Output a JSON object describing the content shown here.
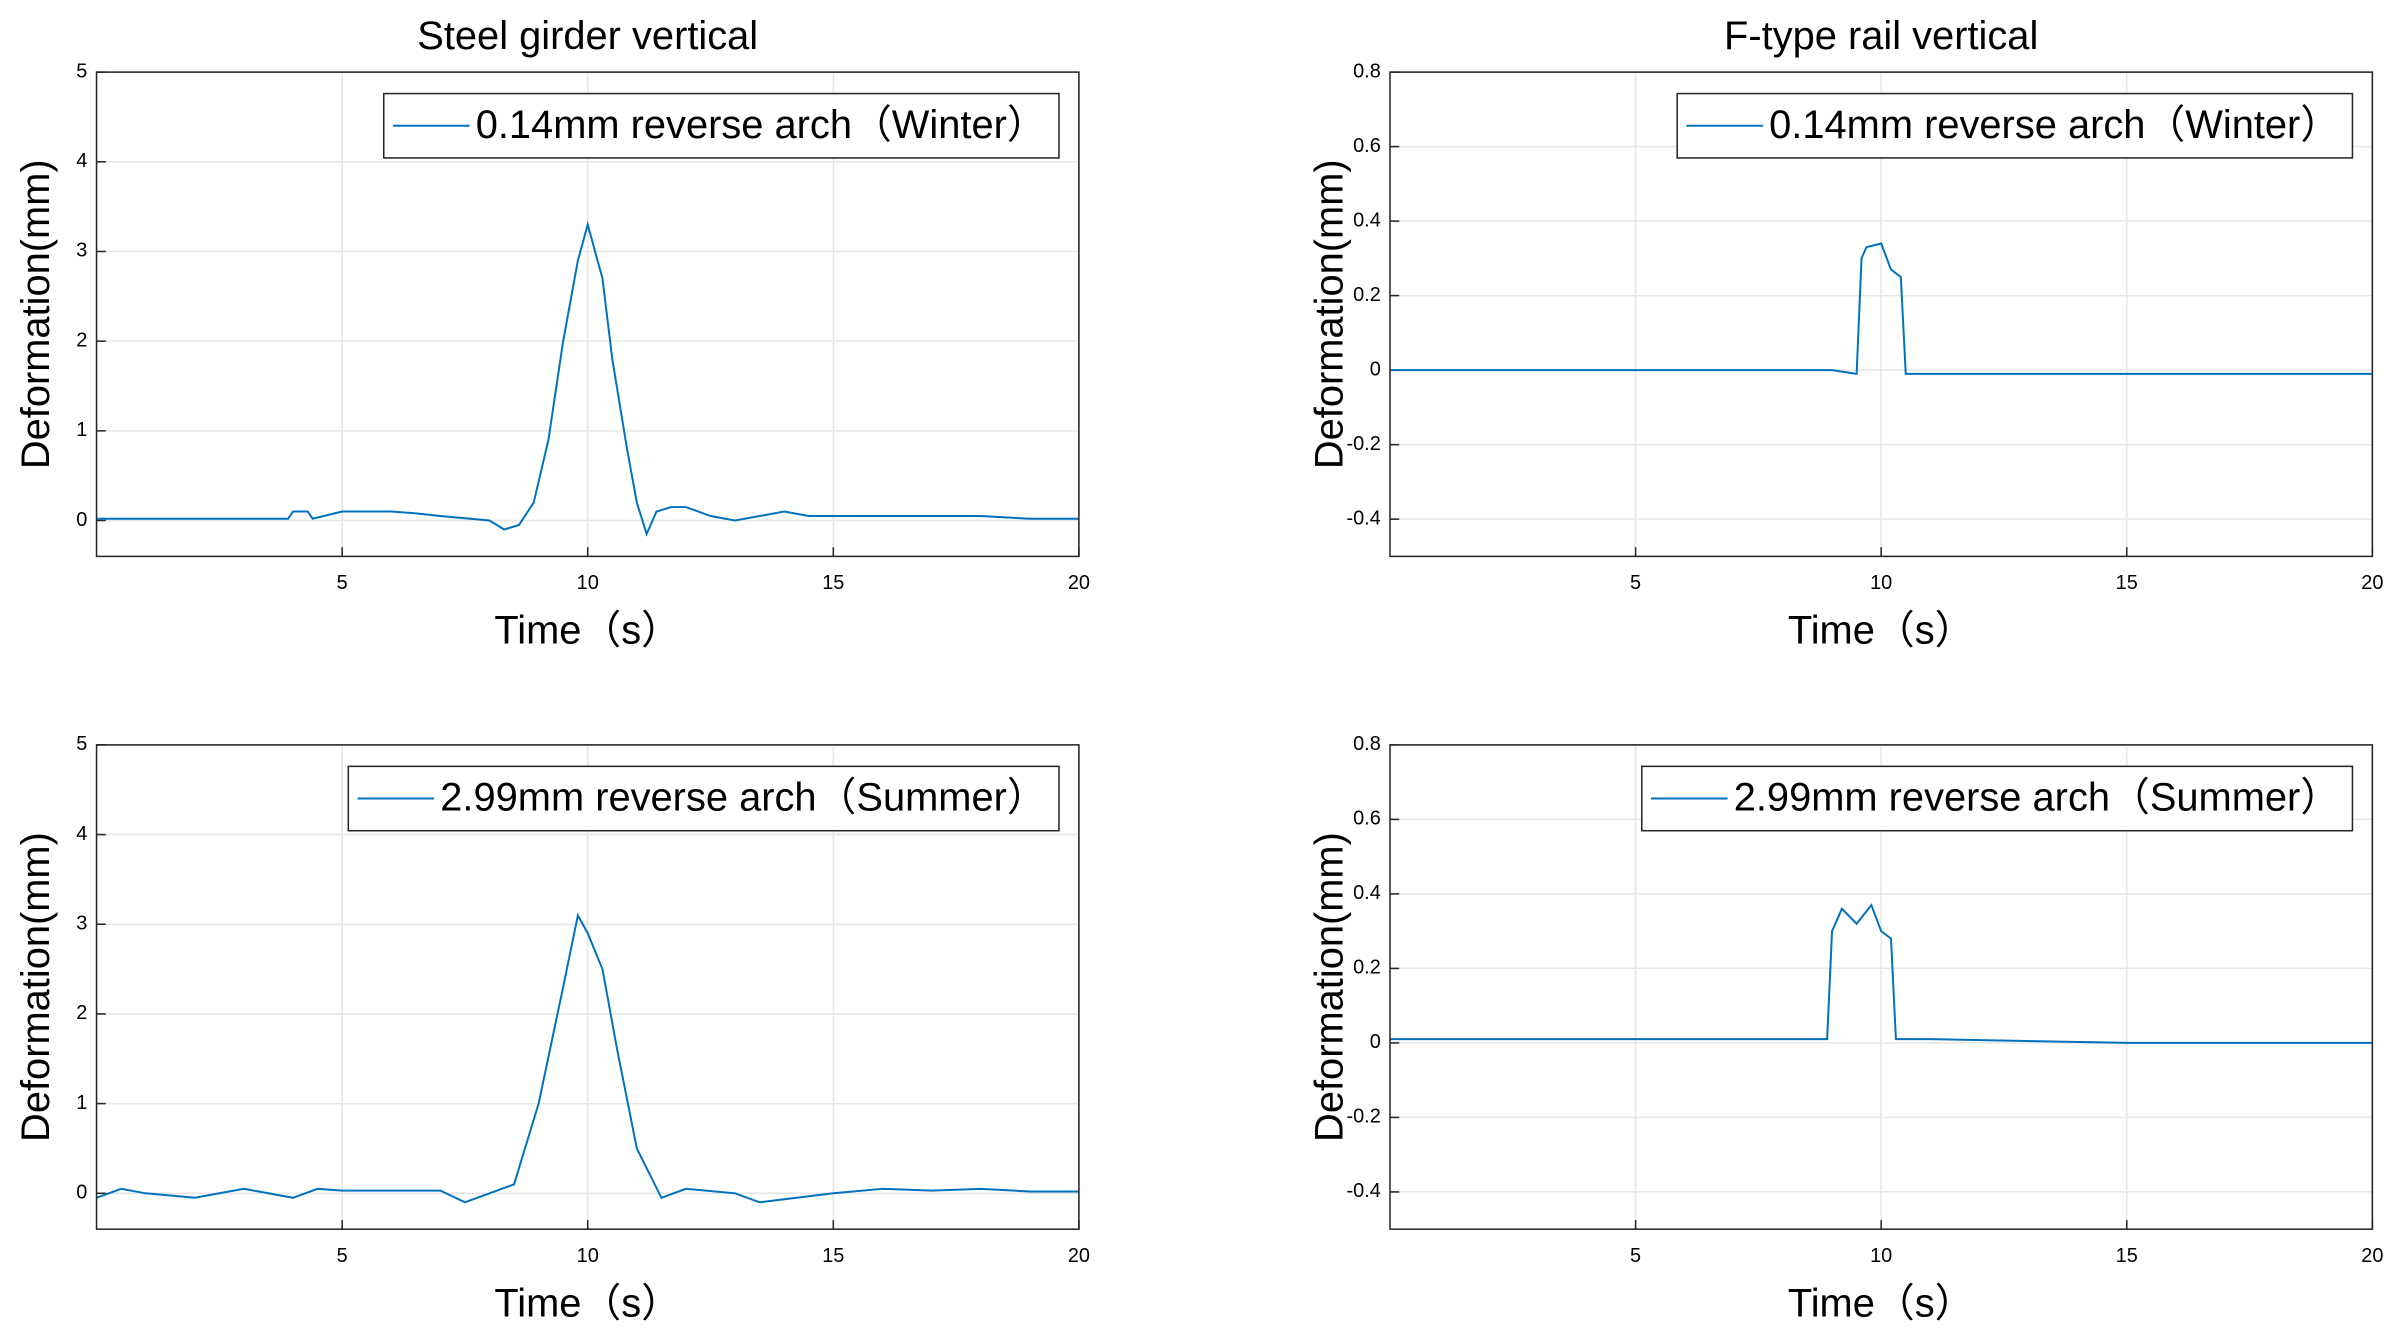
{
  "chart_data": [
    {
      "type": "line",
      "title": "Steel girder vertical",
      "xlabel": "Time（s）",
      "ylabel": "Deformation(mm)",
      "x": [
        0,
        1,
        2,
        3,
        3.9,
        4.0,
        4.3,
        4.4,
        5,
        6,
        6.5,
        7,
        8,
        8.3,
        8.6,
        8.9,
        9.2,
        9.5,
        9.8,
        10.0,
        10.1,
        10.3,
        10.5,
        10.8,
        11.0,
        11.2,
        11.4,
        11.7,
        12,
        12.5,
        13,
        14,
        14.5,
        15,
        16,
        17,
        18,
        19,
        20
      ],
      "series": [
        {
          "name": "0.14mm reverse arch（Winter）",
          "color": "#0072bd",
          "values": [
            0.02,
            0.02,
            0.02,
            0.02,
            0.02,
            0.1,
            0.1,
            0.02,
            0.1,
            0.1,
            0.08,
            0.05,
            0.0,
            -0.1,
            -0.05,
            0.2,
            0.9,
            2.0,
            2.9,
            3.3,
            3.1,
            2.7,
            1.8,
            0.8,
            0.2,
            -0.15,
            0.1,
            0.15,
            0.15,
            0.05,
            0.0,
            0.1,
            0.05,
            0.05,
            0.05,
            0.05,
            0.05,
            0.02,
            0.02
          ]
        }
      ],
      "xlim": [
        0,
        20
      ],
      "xticks": [
        5,
        10,
        15,
        20
      ],
      "ylim": [
        -0.4,
        5
      ],
      "yticks": [
        0,
        1,
        2,
        3,
        4,
        5
      ],
      "grid": true
    },
    {
      "type": "line",
      "title": "F-type rail vertical",
      "xlabel": "Time（s）",
      "ylabel": "Deformation(mm)",
      "x": [
        0,
        5,
        9,
        9.5,
        9.6,
        9.7,
        10,
        10.2,
        10.4,
        10.5,
        11,
        15,
        20
      ],
      "series": [
        {
          "name": "0.14mm reverse arch（Winter）",
          "color": "#0072bd",
          "values": [
            0,
            0,
            0,
            -0.01,
            0.3,
            0.33,
            0.34,
            0.27,
            0.25,
            -0.01,
            -0.01,
            -0.01,
            -0.01
          ]
        }
      ],
      "xlim": [
        0,
        20
      ],
      "xticks": [
        5,
        10,
        15,
        20
      ],
      "ylim": [
        -0.5,
        0.8
      ],
      "yticks": [
        -0.4,
        -0.2,
        0,
        0.2,
        0.4,
        0.6,
        0.8
      ],
      "grid": true
    },
    {
      "type": "line",
      "xlabel": "Time（s）",
      "ylabel": "Deformation(mm)",
      "x": [
        0,
        0.5,
        1,
        2,
        3,
        4,
        4.5,
        5,
        6,
        7,
        7.5,
        8,
        8.5,
        9,
        9.5,
        9.8,
        10,
        10.3,
        10.6,
        11,
        11.5,
        12,
        13,
        13.5,
        15,
        16,
        17,
        18,
        19,
        20
      ],
      "series": [
        {
          "name": "2.99mm reverse arch（Summer）",
          "color": "#0072bd",
          "values": [
            -0.05,
            0.05,
            0.0,
            -0.05,
            0.05,
            -0.05,
            0.05,
            0.03,
            0.03,
            0.03,
            -0.1,
            0.0,
            0.1,
            1.0,
            2.3,
            3.1,
            2.9,
            2.5,
            1.6,
            0.5,
            -0.05,
            0.05,
            0.0,
            -0.1,
            0.0,
            0.05,
            0.03,
            0.05,
            0.02,
            0.02
          ]
        }
      ],
      "xlim": [
        0,
        20
      ],
      "xticks": [
        5,
        10,
        15,
        20
      ],
      "ylim": [
        -0.4,
        5
      ],
      "yticks": [
        0,
        1,
        2,
        3,
        4,
        5
      ],
      "grid": true
    },
    {
      "type": "line",
      "xlabel": "Time（s）",
      "ylabel": "Deformation(mm)",
      "x": [
        0,
        5,
        8,
        8.9,
        9.0,
        9.2,
        9.5,
        9.8,
        10,
        10.2,
        10.3,
        10.5,
        11,
        15,
        20
      ],
      "series": [
        {
          "name": "2.99mm reverse arch（Summer）",
          "color": "#0072bd",
          "values": [
            0.01,
            0.01,
            0.01,
            0.01,
            0.3,
            0.36,
            0.32,
            0.37,
            0.3,
            0.28,
            0.01,
            0.01,
            0.01,
            0.0,
            0.0
          ]
        }
      ],
      "xlim": [
        0,
        20
      ],
      "xticks": [
        5,
        10,
        15,
        20
      ],
      "ylim": [
        -0.5,
        0.8
      ],
      "yticks": [
        -0.4,
        -0.2,
        0,
        0.2,
        0.4,
        0.6,
        0.8
      ],
      "grid": true
    }
  ]
}
